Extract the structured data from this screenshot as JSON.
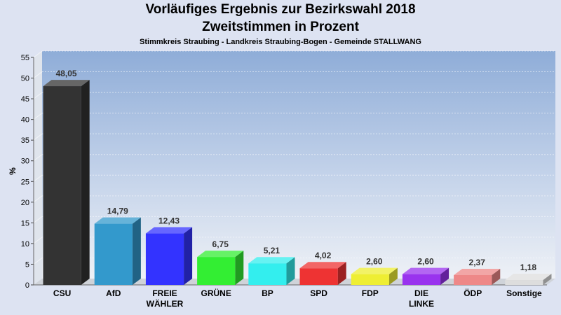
{
  "chart_data": {
    "type": "bar",
    "title": "Vorläufiges Ergebnis zur Bezirkswahl 2018",
    "subtitle": "Zweitstimmen in Prozent",
    "subtitle2": "Stimmkreis Straubing - Landkreis Straubing-Bogen - Gemeinde STALLWANG",
    "ylabel": "%",
    "ylim": [
      0,
      55
    ],
    "yticks": [
      0,
      5,
      10,
      15,
      20,
      25,
      30,
      35,
      40,
      45,
      50,
      55
    ],
    "grid": true,
    "categories": [
      [
        "CSU"
      ],
      [
        "AfD"
      ],
      [
        "FREIE",
        "WÄHLER"
      ],
      [
        "GRÜNE"
      ],
      [
        "BP"
      ],
      [
        "SPD"
      ],
      [
        "FDP"
      ],
      [
        "DIE",
        "LINKE"
      ],
      [
        "ÖDP"
      ],
      [
        "Sonstige"
      ]
    ],
    "values": [
      48.05,
      14.79,
      12.43,
      6.75,
      5.21,
      4.02,
      2.6,
      2.6,
      2.37,
      1.18
    ],
    "value_labels": [
      "48,05",
      "14,79",
      "12,43",
      "6,75",
      "5,21",
      "4,02",
      "2,60",
      "2,60",
      "2,37",
      "1,18"
    ],
    "colors": [
      "#333333",
      "#3399cc",
      "#3333ff",
      "#33ee33",
      "#33eeee",
      "#ee3333",
      "#eeee33",
      "#9933ee",
      "#ee8888",
      "#dddddd"
    ]
  }
}
